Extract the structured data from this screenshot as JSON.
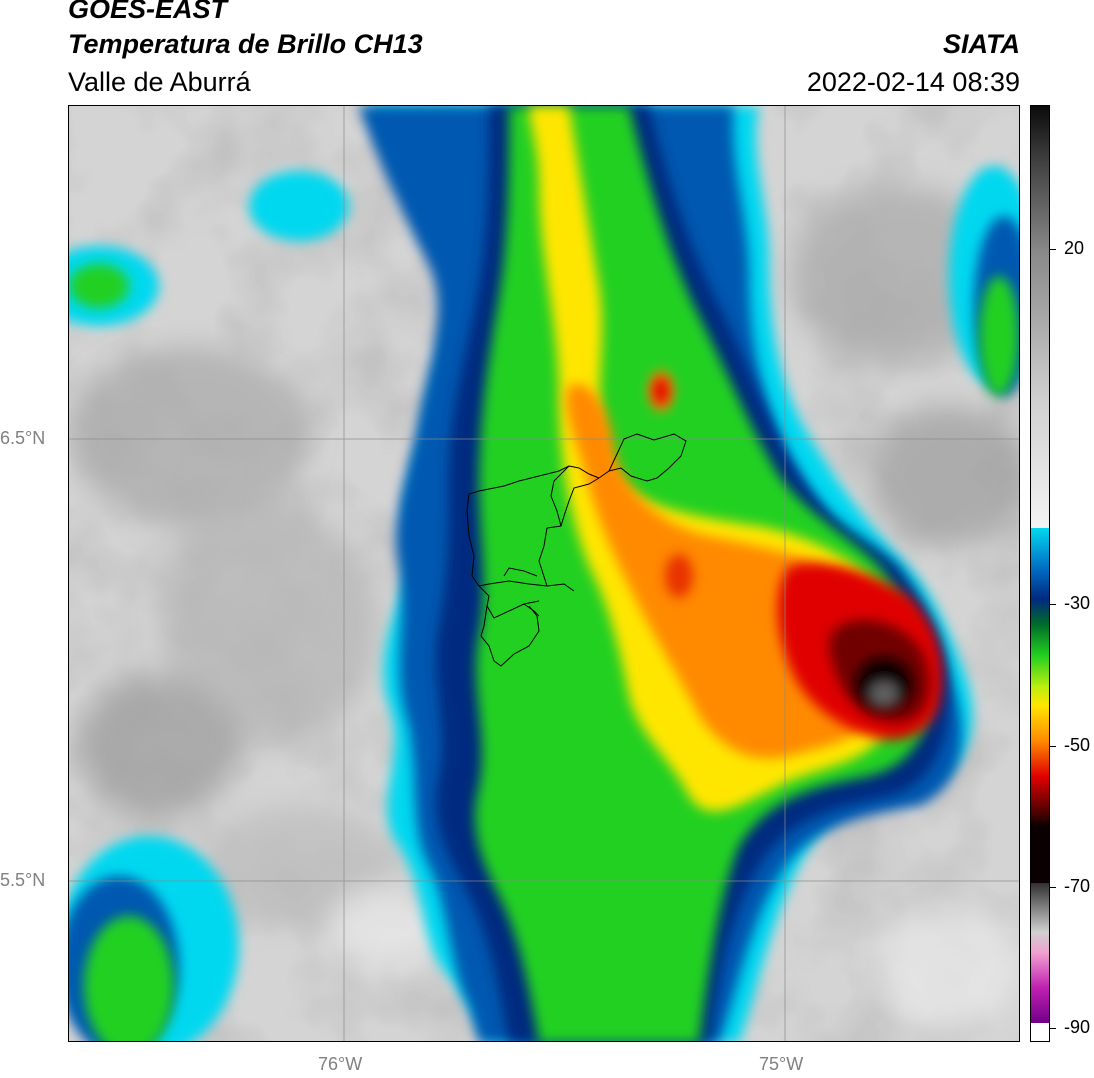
{
  "header": {
    "satellite": "GOES-EAST",
    "product": "Temperatura de Brillo CH13",
    "region": "Valle de Aburrá",
    "organization": "SIATA",
    "datetime": "2022-02-14 08:39"
  },
  "map": {
    "lat_labels": [
      "6.5°N",
      "5.5°N"
    ],
    "lon_labels": [
      "76°W",
      "75°W"
    ]
  },
  "colorbar": {
    "tick_labels": [
      "20",
      "-30",
      "-50",
      "-70",
      "-90"
    ],
    "colors": {
      "warm_light": "#f2f2f2",
      "warm_dark": "#6e6e6e",
      "cyan": "#00d8f0",
      "dark_blue": "#002a80",
      "dark_green": "#006a2a",
      "green": "#22d020",
      "yellow": "#ffe600",
      "orange": "#ff8a00",
      "red": "#e00000",
      "black": "#0a0000",
      "magenta": "#c020b0",
      "purple": "#70008a"
    }
  }
}
